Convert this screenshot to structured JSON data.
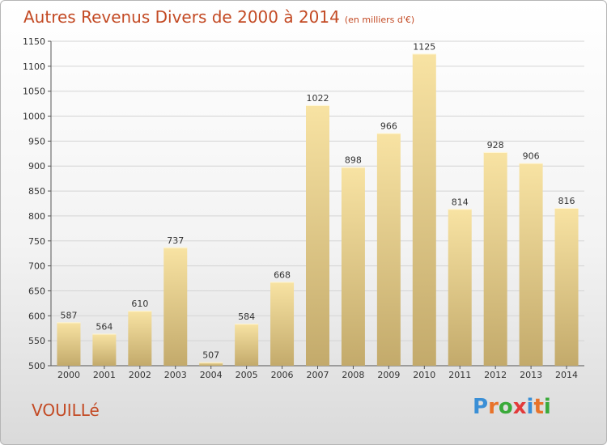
{
  "title": "Autres Revenus Divers de 2000 à 2014",
  "subtitle": "(en milliers d'€)",
  "place": "VOUILLé",
  "logo_text": "Proxiti",
  "logo_colors": [
    "#3a8fd6",
    "#e8732a",
    "#3aaa3a",
    "#e23a3a",
    "#3a8fd6",
    "#e8732a",
    "#3aaa3a"
  ],
  "colors": {
    "title": "#c34a24",
    "bar_light": "#f8e3a3",
    "bar_dark": "#c3aa6b"
  },
  "chart_data": {
    "type": "bar",
    "categories": [
      "2000",
      "2001",
      "2002",
      "2003",
      "2004",
      "2005",
      "2006",
      "2007",
      "2008",
      "2009",
      "2010",
      "2011",
      "2012",
      "2013",
      "2014"
    ],
    "values": [
      587,
      564,
      610,
      737,
      507,
      584,
      668,
      1022,
      898,
      966,
      1125,
      814,
      928,
      906,
      816
    ],
    "ylim": [
      500,
      1150
    ],
    "yticks": [
      500,
      550,
      600,
      650,
      700,
      750,
      800,
      850,
      900,
      950,
      1000,
      1050,
      1100,
      1150
    ],
    "grid": true
  }
}
